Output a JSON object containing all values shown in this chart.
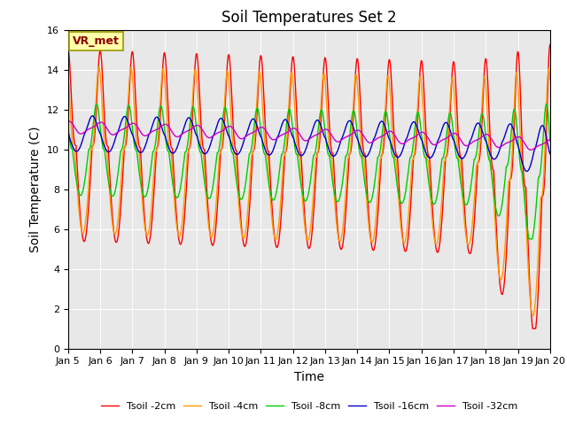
{
  "title": "Soil Temperatures Set 2",
  "xlabel": "Time",
  "ylabel": "Soil Temperature (C)",
  "ylim": [
    0,
    16
  ],
  "yticks": [
    0,
    2,
    4,
    6,
    8,
    10,
    12,
    14,
    16
  ],
  "x_tick_labels": [
    "Jan 5",
    "Jan 6",
    "Jan 7",
    "Jan 8",
    "Jan 9",
    "Jan 10",
    "Jan 11",
    "Jan 12",
    "Jan 13",
    "Jan 14",
    "Jan 15",
    "Jan 16",
    "Jan 17",
    "Jan 18",
    "Jan 19",
    "Jan 20"
  ],
  "annotation_text": "VR_met",
  "colors": {
    "Tsoil -2cm": "#ff0000",
    "Tsoil -4cm": "#ff9900",
    "Tsoil -8cm": "#00cc00",
    "Tsoil -16cm": "#0000cc",
    "Tsoil -32cm": "#cc00cc"
  },
  "background_color": "#e8e8e8",
  "plot_bg_color": "#e8e8e8",
  "title_fontsize": 12,
  "axis_label_fontsize": 10,
  "tick_fontsize": 8
}
